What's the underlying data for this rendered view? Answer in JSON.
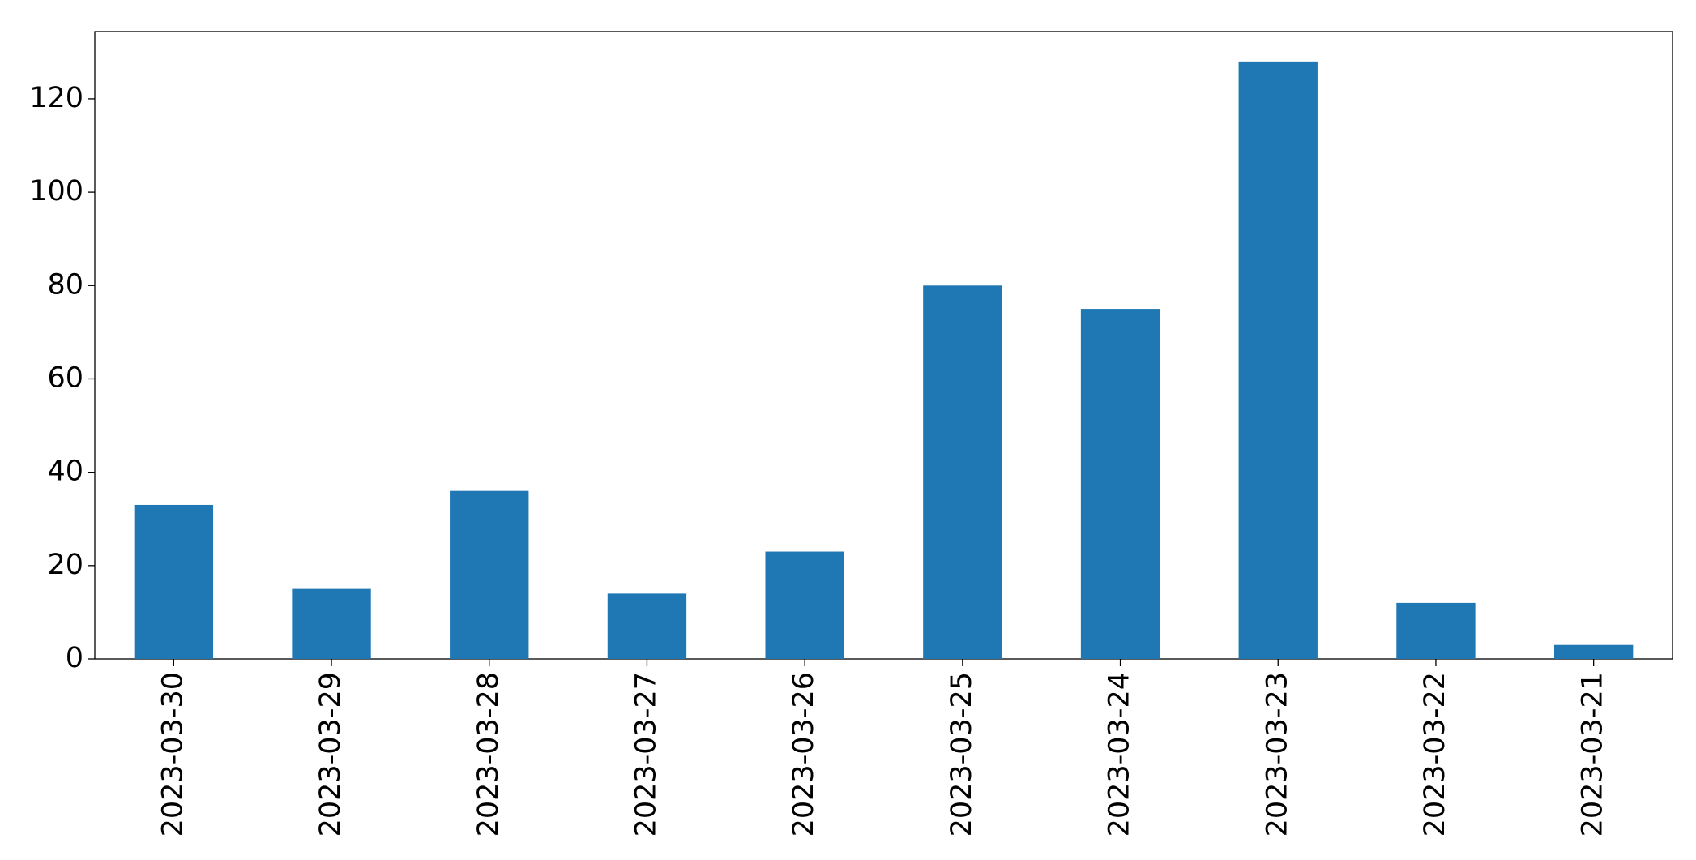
{
  "chart_data": {
    "type": "bar",
    "categories": [
      "2023-03-30",
      "2023-03-29",
      "2023-03-28",
      "2023-03-27",
      "2023-03-26",
      "2023-03-25",
      "2023-03-24",
      "2023-03-23",
      "2023-03-22",
      "2023-03-21"
    ],
    "values": [
      33,
      15,
      36,
      14,
      23,
      80,
      75,
      128,
      12,
      3
    ],
    "color": "#1f77b4",
    "ylim": [
      0,
      134.4
    ],
    "yticks": [
      0,
      20,
      40,
      60,
      80,
      100,
      120
    ],
    "grid": false
  }
}
